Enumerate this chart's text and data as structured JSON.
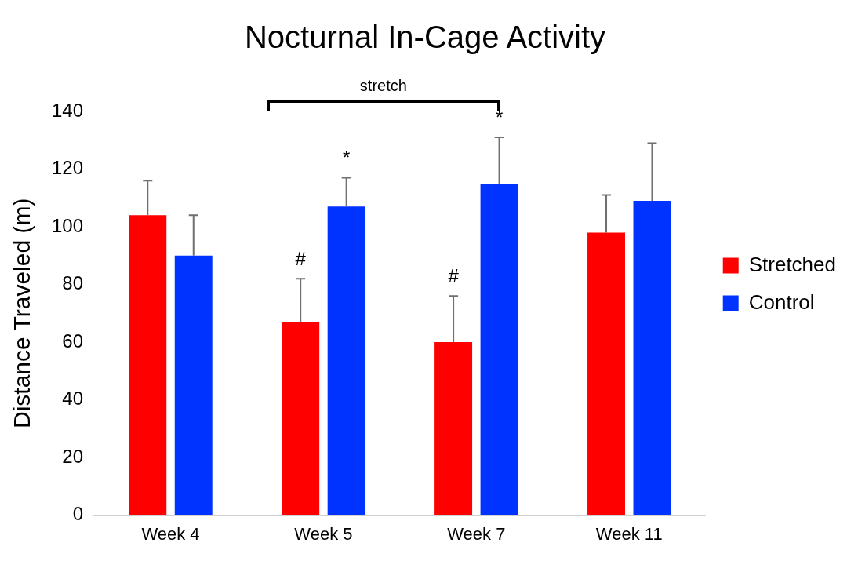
{
  "chart_data": {
    "type": "bar",
    "title": "Nocturnal In-Cage Activity",
    "ylabel": "Distance Traveled (m)",
    "categories": [
      "Week 4",
      "Week 5",
      "Week 7",
      "Week 11"
    ],
    "series": [
      {
        "name": "Stretched",
        "color": "#ff0000",
        "values": [
          104,
          67,
          60,
          98
        ],
        "errors": [
          [
            104,
            116
          ],
          [
            67,
            82
          ],
          [
            60,
            76
          ],
          [
            98,
            111
          ]
        ]
      },
      {
        "name": "Control",
        "color": "#0033ff",
        "values": [
          90,
          107,
          115,
          109
        ],
        "errors": [
          [
            90,
            104
          ],
          [
            107,
            117
          ],
          [
            115,
            131
          ],
          [
            109,
            129
          ]
        ]
      }
    ],
    "ylim": [
      0,
      140
    ],
    "yticks": [
      0,
      20,
      40,
      60,
      80,
      100,
      120,
      140
    ],
    "grid": false,
    "legend": "right",
    "annotations": [
      "stretch",
      "#",
      "*",
      "#",
      "*"
    ]
  }
}
